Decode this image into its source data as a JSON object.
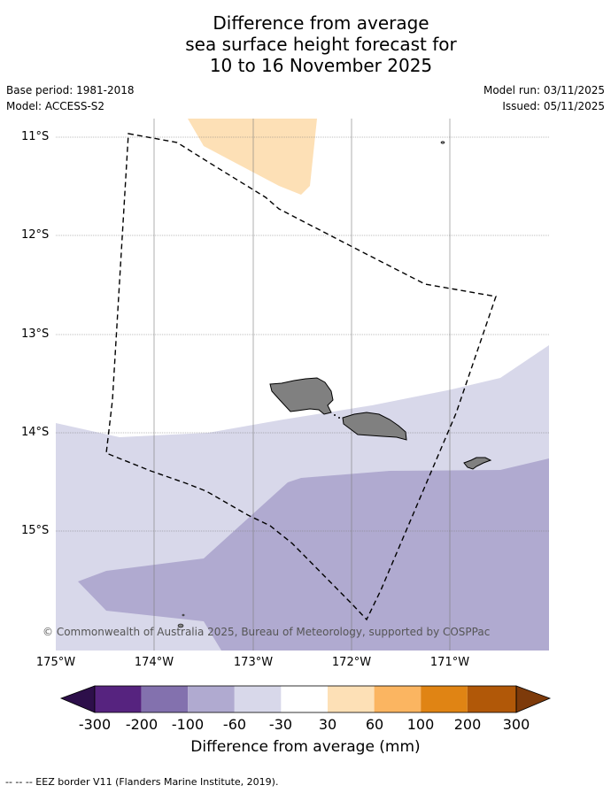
{
  "title": {
    "line1": "Difference from average",
    "line2": "sea surface height forecast for",
    "line3": "10 to 16 November 2025"
  },
  "meta": {
    "base_period": "Base period: 1981-2018",
    "model": "Model: ACCESS-S2",
    "model_run": "Model run: 03/11/2025",
    "issued": "Issued: 05/11/2025"
  },
  "map": {
    "lat_labels": [
      "11°S",
      "12°S",
      "13°S",
      "14°S",
      "15°S"
    ],
    "lon_labels": [
      "175°W",
      "174°W",
      "173°W",
      "172°W",
      "171°W"
    ],
    "copyright": "© Commonwealth of Australia 2025, Bureau of Meteorology, supported by COSPPac",
    "colors": {
      "land": "#808080",
      "pos30_60": "#fde0b6",
      "neg30_60": "#d8d8ea",
      "neg60_100": "#b0aad0"
    }
  },
  "colorbar": {
    "title": "Difference from average (mm)",
    "tick_labels": [
      "-300",
      "-200",
      "-100",
      "-60",
      "-30",
      "30",
      "60",
      "100",
      "200",
      "300"
    ],
    "colors": [
      "#2d0f4a",
      "#56237f",
      "#8371ae",
      "#b0aad0",
      "#d8d8ea",
      "#ffffff",
      "#fde0b6",
      "#fbb561",
      "#e08414",
      "#b15808",
      "#7d3a0a"
    ]
  },
  "footnote": "--  --  -- EEZ border V11 (Flanders Marine Institute, 2019)."
}
